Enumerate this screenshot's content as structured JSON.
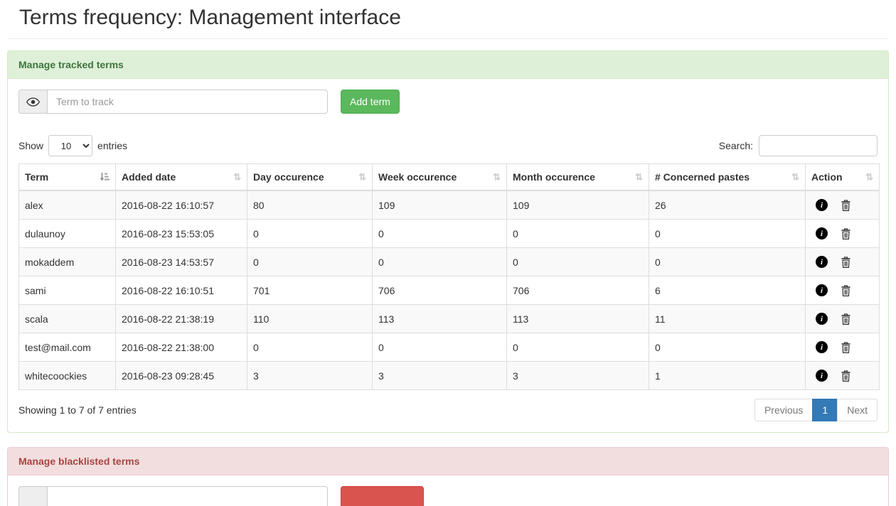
{
  "page": {
    "title": "Terms frequency: Management interface"
  },
  "tracked_panel": {
    "heading": "Manage tracked terms",
    "term_input_placeholder": "Term to track",
    "term_input_value": "",
    "add_button_label": "Add term",
    "datatable": {
      "show_label": "Show",
      "entries_label": "entries",
      "page_length": "10",
      "search_label": "Search:",
      "search_value": "",
      "sort_icon_unsorted": "⇅",
      "info_icon_glyph": "i",
      "columns": [
        "Term",
        "Added date",
        "Day occurence",
        "Week occurence",
        "Month occurence",
        "# Concerned pastes",
        "Action"
      ],
      "sorted_column": "Term",
      "rows": [
        {
          "term": "alex",
          "added": "2016-08-22 16:10:57",
          "day": "80",
          "week": "109",
          "month": "109",
          "pastes": "26"
        },
        {
          "term": "dulaunoy",
          "added": "2016-08-23 15:53:05",
          "day": "0",
          "week": "0",
          "month": "0",
          "pastes": "0"
        },
        {
          "term": "mokaddem",
          "added": "2016-08-23 14:53:57",
          "day": "0",
          "week": "0",
          "month": "0",
          "pastes": "0"
        },
        {
          "term": "sami",
          "added": "2016-08-22 16:10:51",
          "day": "701",
          "week": "706",
          "month": "706",
          "pastes": "6"
        },
        {
          "term": "scala",
          "added": "2016-08-22 21:38:19",
          "day": "110",
          "week": "113",
          "month": "113",
          "pastes": "11"
        },
        {
          "term": "test@mail.com",
          "added": "2016-08-22 21:38:00",
          "day": "0",
          "week": "0",
          "month": "0",
          "pastes": "0"
        },
        {
          "term": "whitecoockies",
          "added": "2016-08-23 09:28:45",
          "day": "3",
          "week": "3",
          "month": "3",
          "pastes": "1"
        }
      ],
      "info_text": "Showing 1 to 7 of 7 entries",
      "pagination": {
        "previous": "Previous",
        "current_page": "1",
        "next": "Next"
      }
    }
  },
  "blacklist_panel": {
    "heading": "Manage blacklisted terms",
    "term_input_placeholder": "",
    "term_input_value": "",
    "add_button_label": ""
  },
  "colors": {
    "success_heading_bg": "#dff0d8",
    "success_heading_text": "#3c763d",
    "success_border": "#d6e9c6",
    "danger_heading_bg": "#f2dede",
    "danger_heading_text": "#a94442",
    "danger_border": "#ebccd1",
    "add_button": "#5cb85c",
    "blacklist_button": "#d9534f",
    "pagination_active": "#337ab7",
    "table_border": "#dddddd",
    "stripe_row": "#f9f9f9"
  }
}
